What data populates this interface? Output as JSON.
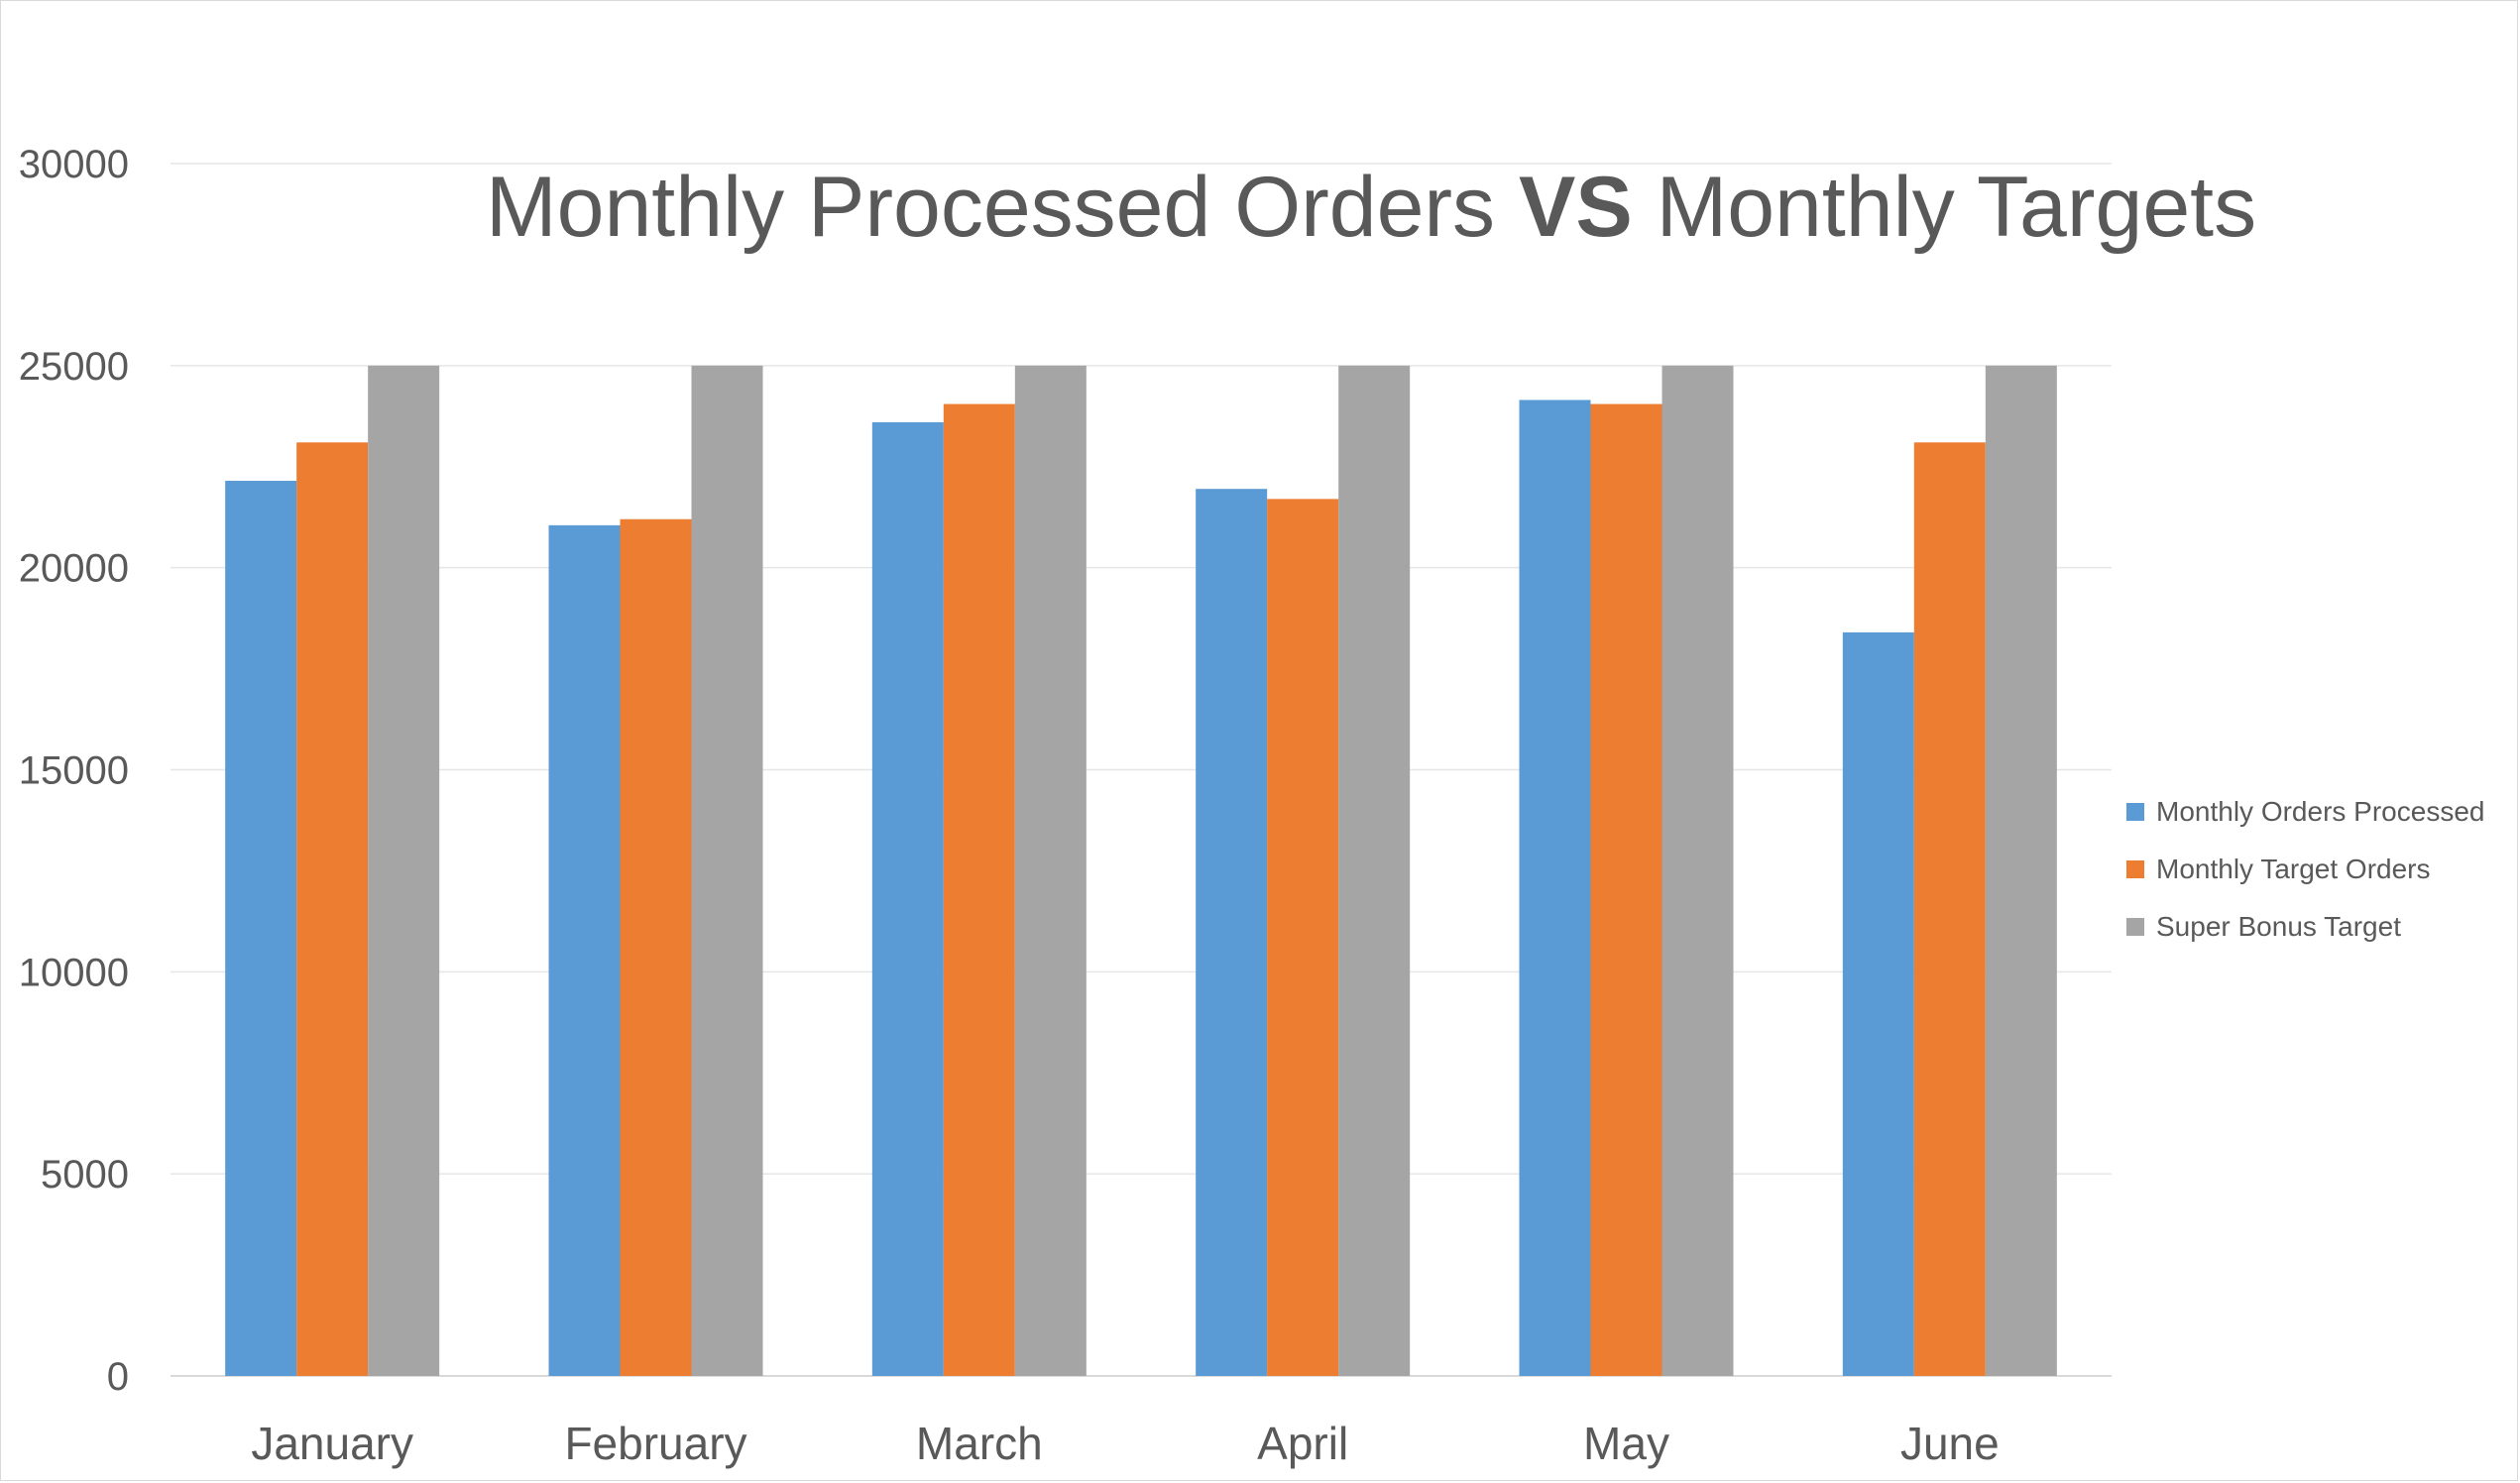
{
  "chart_data": {
    "type": "bar",
    "title": {
      "part1": "Monthly Processed Orders ",
      "part2": "VS",
      "part3": " Monthly Targets"
    },
    "xlabel": "",
    "ylabel": "",
    "categories": [
      "January",
      "February",
      "March",
      "April",
      "May",
      "June"
    ],
    "ylim": [
      0,
      30000
    ],
    "yticks": [
      "0",
      "5000",
      "10000",
      "15000",
      "20000",
      "25000",
      "30000"
    ],
    "grid": true,
    "legend_position": "right",
    "series": [
      {
        "name": "Monthly Orders Processed",
        "color": "#5b9bd5",
        "values": [
          22150,
          21050,
          23600,
          21950,
          24150,
          18400
        ]
      },
      {
        "name": "Monthly Target Orders",
        "color": "#ed7d31",
        "values": [
          23100,
          21200,
          24050,
          21700,
          24050,
          23100
        ]
      },
      {
        "name": "Super Bonus Target",
        "color": "#a5a5a5",
        "values": [
          25000,
          25000,
          25000,
          25000,
          25000,
          25000
        ]
      }
    ]
  }
}
